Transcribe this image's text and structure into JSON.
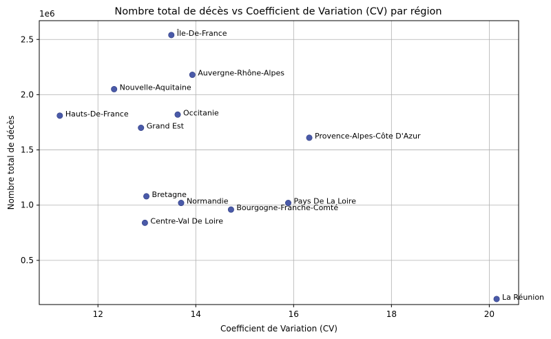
{
  "chart_data": {
    "type": "scatter",
    "title": "Nombre total de décès vs Coefficient de Variation (CV) par région",
    "xlabel": "Coefficient de Variation (CV)",
    "ylabel": "Nombre total de décès",
    "y_offset_label": "1e6",
    "xlim": [
      10.8,
      20.6
    ],
    "ylim": [
      0.1,
      2.67
    ],
    "xticks": [
      12,
      14,
      16,
      18,
      20
    ],
    "yticks": [
      0.5,
      1.0,
      1.5,
      2.0,
      2.5
    ],
    "xtick_labels": [
      "12",
      "14",
      "16",
      "18",
      "20"
    ],
    "ytick_labels": [
      "0.5",
      "1.0",
      "1.5",
      "2.0",
      "2.5"
    ],
    "grid": true,
    "marker_color": "#4a5aa8",
    "points": [
      {
        "label": "Île-De-France",
        "x": 13.5,
        "y": 2.54
      },
      {
        "label": "Auvergne-Rhône-Alpes",
        "x": 13.93,
        "y": 2.18
      },
      {
        "label": "Nouvelle-Aquitaine",
        "x": 12.33,
        "y": 2.05
      },
      {
        "label": "Hauts-De-France",
        "x": 11.22,
        "y": 1.81
      },
      {
        "label": "Occitanie",
        "x": 13.63,
        "y": 1.82
      },
      {
        "label": "Grand Est",
        "x": 12.88,
        "y": 1.7
      },
      {
        "label": "Provence-Alpes-Côte D'Azur",
        "x": 16.32,
        "y": 1.61
      },
      {
        "label": "Bretagne",
        "x": 12.99,
        "y": 1.08
      },
      {
        "label": "Normandie",
        "x": 13.7,
        "y": 1.02
      },
      {
        "label": "Pays De La Loire",
        "x": 15.89,
        "y": 1.02
      },
      {
        "label": "Bourgogne-Franche-Comté",
        "x": 14.72,
        "y": 0.96
      },
      {
        "label": "Centre-Val De Loire",
        "x": 12.96,
        "y": 0.84
      },
      {
        "label": "La Réunion",
        "x": 20.15,
        "y": 0.15
      }
    ]
  }
}
